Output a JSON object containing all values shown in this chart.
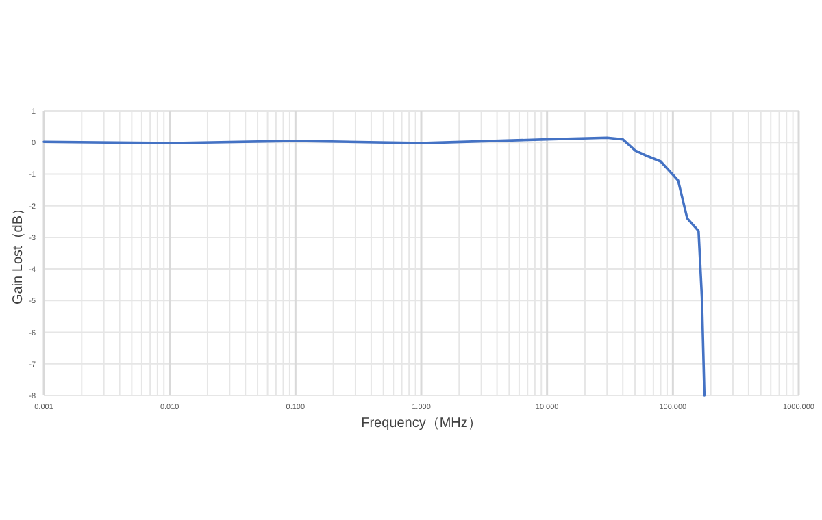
{
  "chart_data": {
    "type": "line",
    "xlabel": "Frequency（MHz）",
    "ylabel": "Gain Lost（dB）",
    "log": "x",
    "grid": true,
    "marker": "none",
    "line_style": "solid",
    "xlim": [
      0.001,
      1000
    ],
    "xticks": [
      {
        "value": 0.001,
        "label": "0.001"
      },
      {
        "value": 0.01,
        "label": "0.010"
      },
      {
        "value": 0.1,
        "label": "0.100"
      },
      {
        "value": 1,
        "label": "1.000"
      },
      {
        "value": 10,
        "label": "10.000"
      },
      {
        "value": 100,
        "label": "100.000"
      },
      {
        "value": 1000,
        "label": "1000.000"
      }
    ],
    "ylim": [
      -8,
      1
    ],
    "yticks": [
      -8,
      -7,
      -6,
      -5,
      -4,
      -3,
      -2,
      -1,
      0,
      1
    ],
    "series": [
      {
        "color": "#4472c4",
        "x": [
          0.001,
          0.01,
          0.1,
          1,
          10,
          30,
          40,
          50,
          60,
          80,
          110,
          130,
          160,
          170,
          178
        ],
        "values": [
          0.02,
          -0.02,
          0.05,
          -0.02,
          0.1,
          0.15,
          0.1,
          -0.25,
          -0.4,
          -0.6,
          -1.2,
          -2.4,
          -2.8,
          -4.9,
          -8
        ]
      }
    ]
  }
}
